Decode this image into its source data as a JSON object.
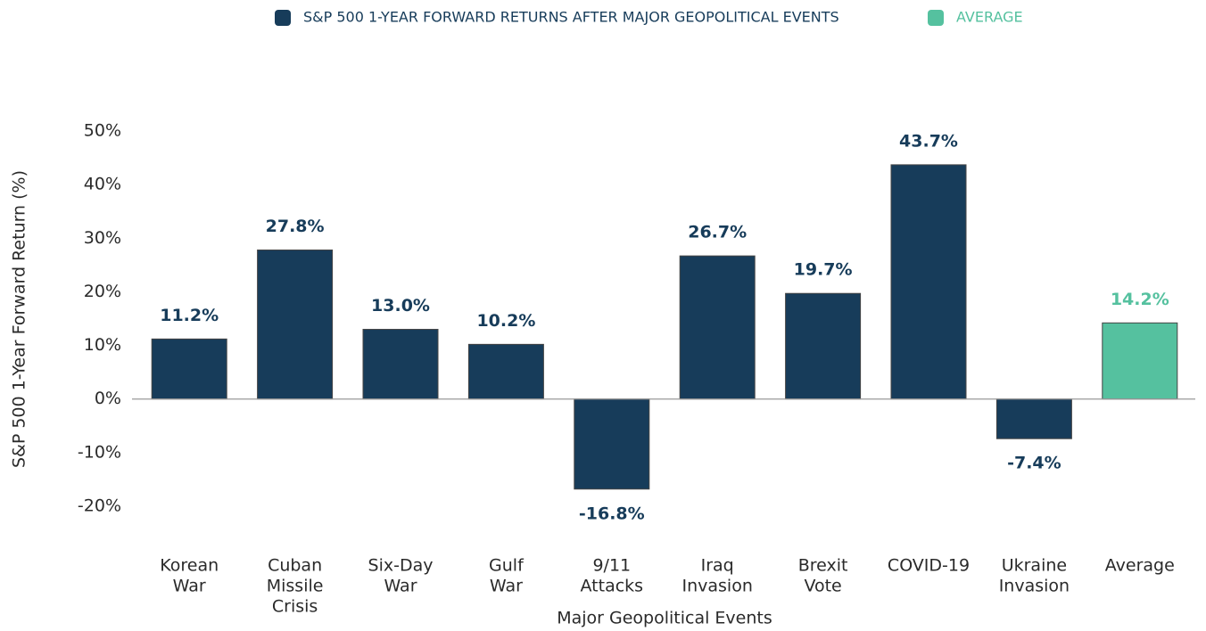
{
  "chart_data": {
    "type": "bar",
    "x_label": "Major Geopolitical Events",
    "y_label": "S&P 500 1-Year Forward Return (%)",
    "categories": [
      [
        "Korean",
        "War"
      ],
      [
        "Cuban",
        "Missile",
        "Crisis"
      ],
      [
        "Six-Day",
        "War"
      ],
      [
        "Gulf",
        "War"
      ],
      [
        "9/11",
        "Attacks"
      ],
      [
        "Iraq",
        "Invasion"
      ],
      [
        "Brexit",
        "Vote"
      ],
      [
        "COVID-19"
      ],
      [
        "Ukraine",
        "Invasion"
      ],
      [
        "Average"
      ]
    ],
    "series": [
      {
        "name": "S&P 500 1-YEAR FORWARD RETURNS AFTER MAJOR GEOPOLITICAL EVENTS",
        "color": "#173c5a",
        "values": [
          11.2,
          27.8,
          13.0,
          10.2,
          -16.8,
          26.7,
          19.7,
          43.7,
          -7.4,
          null
        ],
        "value_labels": [
          "11.2%",
          "27.8%",
          "13.0%",
          "10.2%",
          "-16.8%",
          "26.7%",
          "19.7%",
          "43.7%",
          "-7.4%",
          null
        ]
      },
      {
        "name": "AVERAGE",
        "color": "#55c19f",
        "values": [
          null,
          null,
          null,
          null,
          null,
          null,
          null,
          null,
          null,
          14.2
        ],
        "value_labels": [
          null,
          null,
          null,
          null,
          null,
          null,
          null,
          null,
          null,
          "14.2%"
        ]
      }
    ],
    "ylim": [
      -20,
      50
    ],
    "yticks": [
      {
        "value": -20,
        "label": "-20%"
      },
      {
        "value": -10,
        "label": "-10%"
      },
      {
        "value": 0,
        "label": "0%"
      },
      {
        "value": 10,
        "label": "10%"
      },
      {
        "value": 20,
        "label": "20%"
      },
      {
        "value": 30,
        "label": "30%"
      },
      {
        "value": 40,
        "label": "40%"
      },
      {
        "value": 50,
        "label": "50%"
      }
    ],
    "grid": false,
    "legend": "top"
  }
}
